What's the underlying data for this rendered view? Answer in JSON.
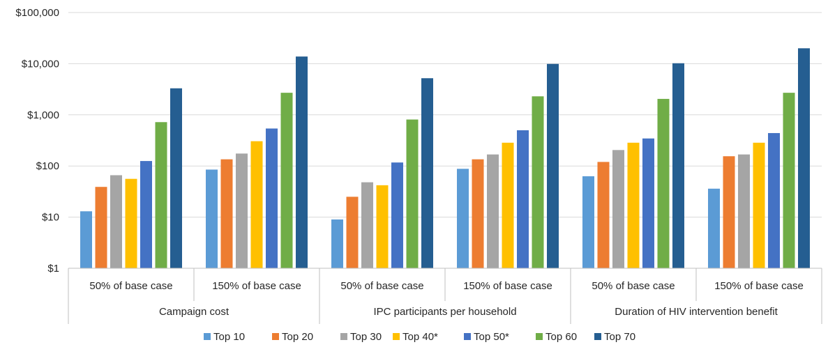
{
  "chart_data": {
    "type": "bar",
    "y_scale": "log",
    "ylim": [
      1,
      100000
    ],
    "y_ticks": [
      "$1",
      "$10",
      "$100",
      "$1,000",
      "$10,000",
      "$100,000"
    ],
    "y_tick_values": [
      1,
      10,
      100,
      1000,
      10000,
      100000
    ],
    "grid": "horizontal",
    "legend_position": "bottom",
    "groups": [
      "Campaign cost",
      "IPC  participants per household",
      "Duration of HIV intervention benefit"
    ],
    "categories": [
      "50% of base case",
      "150% of base case",
      "50% of base case",
      "150% of base case",
      "50% of base case",
      "150% of base case"
    ],
    "series": [
      {
        "name": "Top 10",
        "color": "#5B9BD5",
        "values": [
          13,
          85,
          9,
          88,
          63,
          36
        ]
      },
      {
        "name": "Top 20",
        "color": "#ED7D31",
        "values": [
          39,
          135,
          25,
          135,
          120,
          155
        ]
      },
      {
        "name": "Top 30",
        "color": "#A5A5A5",
        "values": [
          66,
          175,
          48,
          168,
          205,
          168
        ]
      },
      {
        "name": "Top 40*",
        "color": "#FFC000",
        "values": [
          56,
          305,
          42,
          285,
          285,
          285
        ]
      },
      {
        "name": "Top 50*",
        "color": "#4472C4",
        "values": [
          125,
          540,
          117,
          500,
          345,
          440
        ]
      },
      {
        "name": "Top 60",
        "color": "#70AD47",
        "values": [
          720,
          2700,
          810,
          2300,
          2050,
          2700
        ]
      },
      {
        "name": "Top 70",
        "color": "#255E91",
        "values": [
          3300,
          13800,
          5200,
          9900,
          10200,
          20000
        ]
      }
    ]
  }
}
